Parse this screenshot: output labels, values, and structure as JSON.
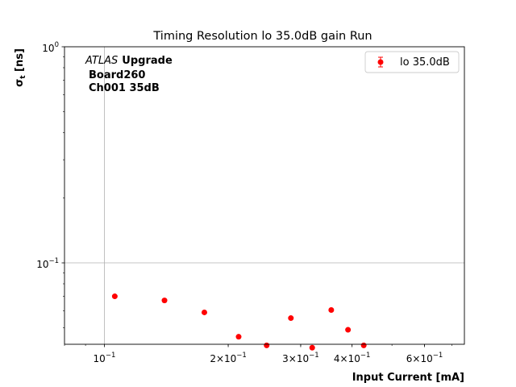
{
  "chart_data": {
    "type": "scatter",
    "title": "Timing Resolution lo 35.0dB gain Run",
    "xlabel": "Input Current [mA]",
    "ylabel_main": "σ",
    "ylabel_sub": "t",
    "ylabel_unit": " [ns]",
    "x_scale": "log",
    "y_scale": "log",
    "xlim": [
      0.08,
      0.75
    ],
    "ylim": [
      0.042,
      1.0
    ],
    "x_ticks": [
      {
        "value": 0.1,
        "mantissa": "",
        "exponent": "−1"
      },
      {
        "value": 0.2,
        "mantissa": "2×",
        "exponent": "−1"
      },
      {
        "value": 0.3,
        "mantissa": "3×",
        "exponent": "−1"
      },
      {
        "value": 0.4,
        "mantissa": "4×",
        "exponent": "−1"
      },
      {
        "value": 0.6,
        "mantissa": "6×",
        "exponent": "−1"
      }
    ],
    "y_ticks": [
      {
        "value": 0.1,
        "base": "10",
        "exponent": "−1"
      },
      {
        "value": 1.0,
        "base": "10",
        "exponent": "0"
      }
    ],
    "grid": true,
    "legend_position": "top-right",
    "annotation": {
      "italic": "ATLAS",
      "bold": "Upgrade",
      "line2": "Board260",
      "line3": "Ch001 35dB"
    },
    "series": [
      {
        "name": "lo 35.0dB",
        "color": "#ff0000",
        "points": [
          {
            "x": 0.106,
            "y": 0.07
          },
          {
            "x": 0.14,
            "y": 0.067
          },
          {
            "x": 0.175,
            "y": 0.059
          },
          {
            "x": 0.212,
            "y": 0.0455
          },
          {
            "x": 0.248,
            "y": 0.0415
          },
          {
            "x": 0.284,
            "y": 0.0555
          },
          {
            "x": 0.32,
            "y": 0.0405
          },
          {
            "x": 0.356,
            "y": 0.0605
          },
          {
            "x": 0.391,
            "y": 0.049
          },
          {
            "x": 0.427,
            "y": 0.0415
          }
        ]
      }
    ]
  }
}
